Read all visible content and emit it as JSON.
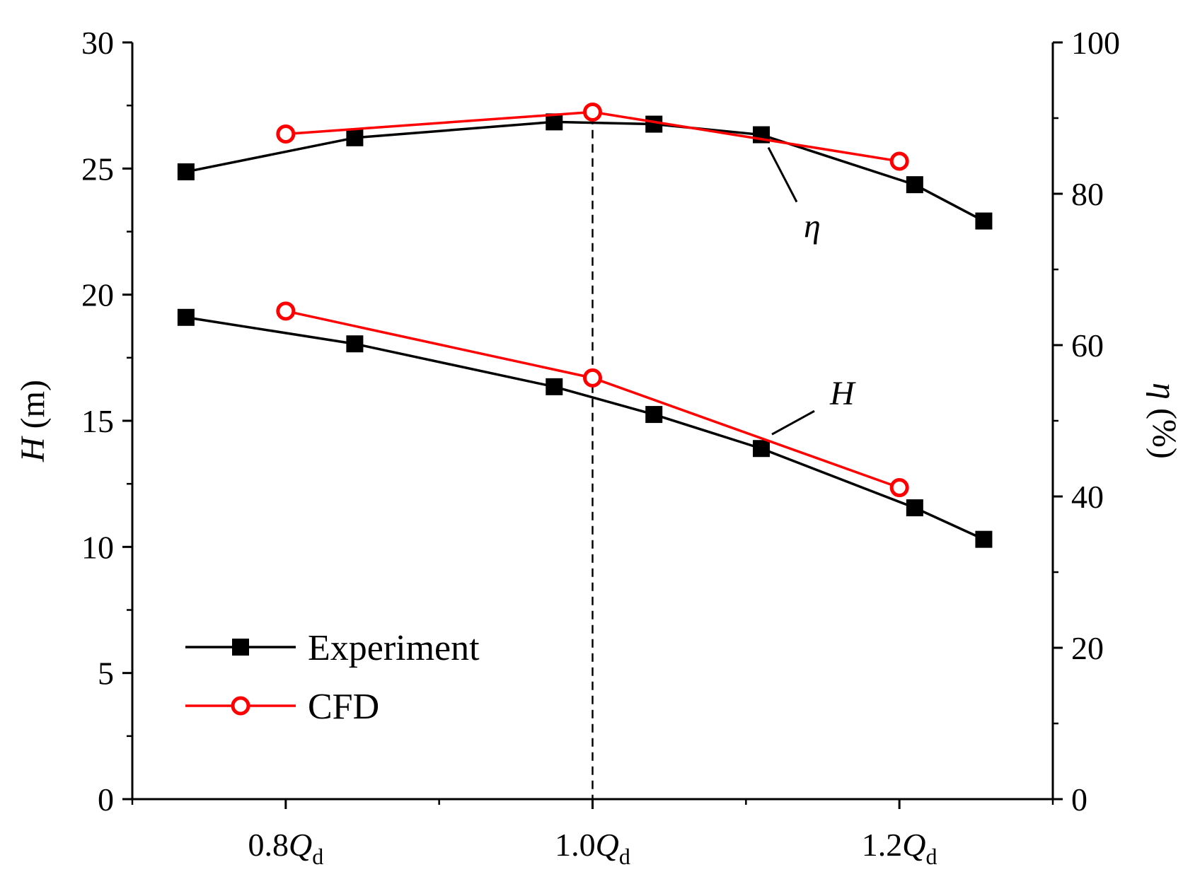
{
  "chart_data": {
    "type": "line",
    "title": "",
    "x_axis": {
      "lim": [
        0.7,
        1.3
      ],
      "ticks": [
        {
          "value": 0.8,
          "number": "0.8",
          "symbol": "Q",
          "subscript": "d"
        },
        {
          "value": 1.0,
          "number": "1.0",
          "symbol": "Q",
          "subscript": "d"
        },
        {
          "value": 1.2,
          "number": "1.2",
          "symbol": "Q",
          "subscript": "d"
        }
      ],
      "minor_ticks": [
        0.7,
        0.9,
        1.1,
        1.3
      ]
    },
    "y_left": {
      "label_symbol": "H",
      "label_unit": " (m)",
      "lim": [
        0,
        30
      ],
      "ticks": [
        0,
        5,
        10,
        15,
        20,
        25,
        30
      ]
    },
    "y_right": {
      "label_symbol": "η",
      "label_unit": " (%)",
      "lim": [
        0,
        100
      ],
      "ticks": [
        0,
        20,
        40,
        60,
        80,
        100
      ]
    },
    "reference_line_x": 1.0,
    "series": [
      {
        "name": "Experiment",
        "quantity": "H",
        "axis": "left",
        "color": "#000000",
        "marker": "square",
        "x": [
          0.735,
          0.845,
          0.975,
          1.04,
          1.11,
          1.21,
          1.255
        ],
        "y": [
          19.1,
          18.05,
          16.35,
          15.25,
          13.9,
          11.55,
          10.3
        ]
      },
      {
        "name": "CFD",
        "quantity": "H",
        "axis": "left",
        "color": "#ff0000",
        "marker": "circle",
        "x": [
          0.8,
          1.0,
          1.2
        ],
        "y": [
          19.35,
          16.7,
          12.35
        ]
      },
      {
        "name": "Experiment",
        "quantity": "η",
        "axis": "right",
        "color": "#000000",
        "marker": "square",
        "x": [
          0.735,
          0.845,
          0.975,
          1.04,
          1.11,
          1.21,
          1.255
        ],
        "y": [
          82.9,
          87.4,
          89.5,
          89.2,
          87.8,
          81.2,
          76.4
        ]
      },
      {
        "name": "CFD",
        "quantity": "η",
        "axis": "right",
        "color": "#ff0000",
        "marker": "circle",
        "x": [
          0.8,
          1.0,
          1.2
        ],
        "y": [
          87.9,
          90.8,
          84.3
        ]
      }
    ],
    "annotations": [
      {
        "text": "η",
        "target_series": 2,
        "target_point": 4
      },
      {
        "text": "H",
        "target_series": 0,
        "target_point": 4
      }
    ],
    "legend": {
      "position": "bottom-left",
      "entries": [
        {
          "label": "Experiment",
          "color": "#000000",
          "marker": "square"
        },
        {
          "label": "CFD",
          "color": "#ff0000",
          "marker": "circle"
        }
      ]
    }
  }
}
